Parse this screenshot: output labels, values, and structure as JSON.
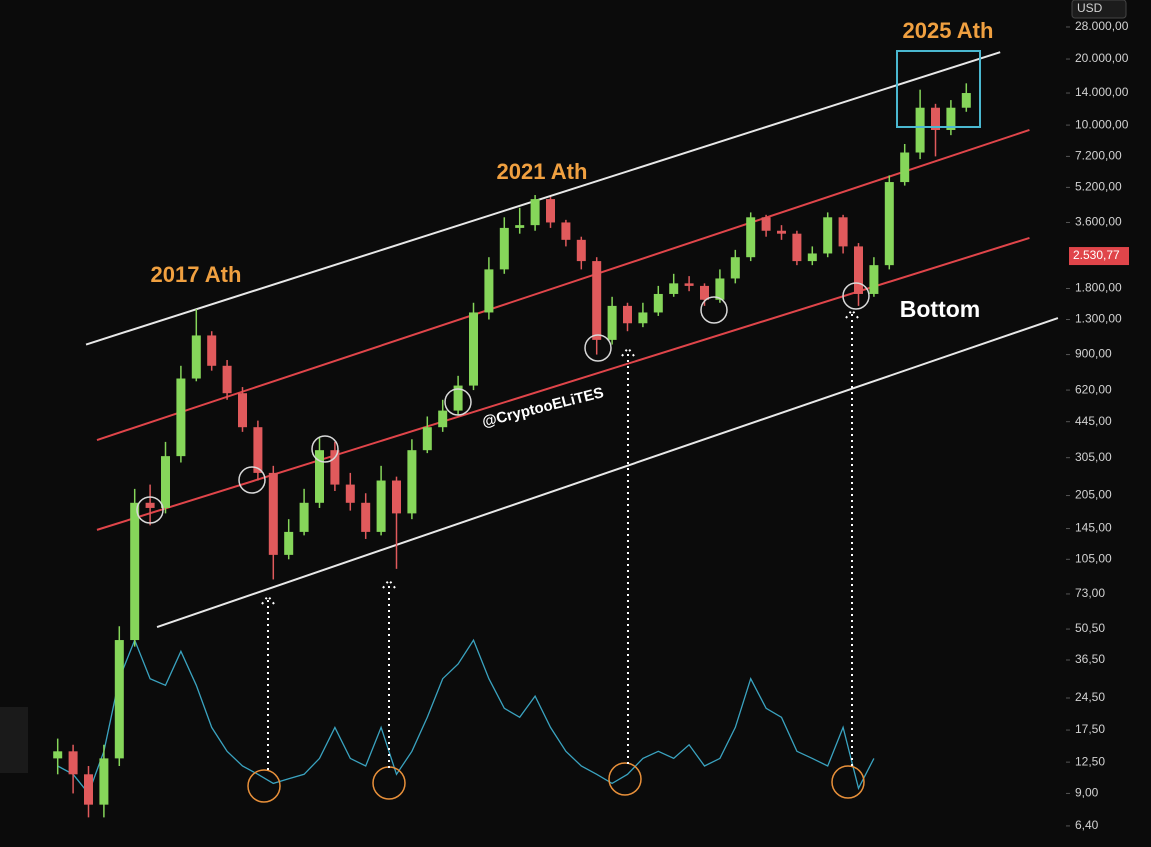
{
  "chart_data": {
    "type": "candlestick",
    "currency": "USD",
    "log_scale": true,
    "categories": [
      null,
      null,
      null,
      null,
      null,
      null,
      null,
      null,
      null,
      null,
      null,
      null,
      null,
      null,
      null,
      null,
      null,
      null,
      null,
      null,
      null,
      null,
      null,
      null,
      null,
      null,
      null,
      null,
      null,
      null,
      null,
      null,
      null,
      null,
      null,
      null,
      null,
      null,
      null,
      null,
      null,
      null,
      null,
      null,
      null,
      null,
      null,
      null,
      null,
      null,
      null,
      null,
      null,
      null,
      null,
      null,
      null,
      null,
      null,
      null
    ],
    "open": [
      13,
      14,
      11,
      8,
      13,
      45,
      190,
      180,
      310,
      700,
      1100,
      800,
      600,
      420,
      260,
      110,
      140,
      190,
      330,
      230,
      190,
      140,
      240,
      170,
      330,
      420,
      500,
      650,
      1400,
      2200,
      3400,
      3500,
      4600,
      3600,
      3000,
      2400,
      1050,
      1500,
      1250,
      1400,
      1700,
      1900,
      1850,
      1600,
      2000,
      2500,
      3800,
      3300,
      3200,
      2400,
      2600,
      3800,
      2800,
      1700,
      2300,
      5500,
      7500,
      12000,
      9500,
      12000
    ],
    "high": [
      16,
      15,
      12,
      15,
      52,
      220,
      230,
      360,
      800,
      1450,
      1150,
      850,
      640,
      450,
      280,
      160,
      220,
      380,
      360,
      260,
      210,
      280,
      250,
      370,
      470,
      560,
      720,
      1550,
      2500,
      3800,
      4200,
      4800,
      4700,
      3700,
      3100,
      2500,
      1650,
      1550,
      1550,
      1850,
      2100,
      2050,
      1900,
      2200,
      2700,
      4000,
      3900,
      3500,
      3300,
      2800,
      4000,
      3900,
      2900,
      2500,
      5900,
      8200,
      14500,
      12500,
      13000,
      15500
    ],
    "low": [
      11,
      9,
      7,
      7,
      12,
      42,
      150,
      170,
      290,
      680,
      760,
      560,
      400,
      240,
      85,
      105,
      135,
      180,
      215,
      175,
      130,
      135,
      95,
      160,
      320,
      400,
      480,
      620,
      1300,
      2100,
      3200,
      3300,
      3400,
      2800,
      2200,
      900,
      1000,
      1150,
      1200,
      1350,
      1650,
      1750,
      1500,
      1550,
      1900,
      2400,
      3100,
      3000,
      2300,
      2300,
      2500,
      2600,
      1500,
      1650,
      2200,
      5300,
      7000,
      7200,
      9000,
      11500
    ],
    "close": [
      14,
      11,
      8,
      13,
      45,
      190,
      180,
      310,
      700,
      1100,
      800,
      600,
      420,
      260,
      110,
      140,
      190,
      330,
      230,
      190,
      140,
      240,
      170,
      330,
      420,
      500,
      650,
      1400,
      2200,
      3400,
      3500,
      4600,
      3600,
      3000,
      2400,
      1050,
      1500,
      1250,
      1400,
      1700,
      1900,
      1850,
      1600,
      2000,
      2500,
      3800,
      3300,
      3200,
      2400,
      2600,
      3800,
      2800,
      1700,
      2300,
      5500,
      7500,
      12000,
      9500,
      12000,
      14000
    ],
    "up_color": "#86d65a",
    "down_color": "#e05a5c",
    "indicator": {
      "color": "#3aa3c0",
      "values": [
        12,
        11,
        9,
        14,
        30,
        45,
        30,
        28,
        40,
        28,
        18,
        14,
        12,
        11,
        10,
        10.5,
        11,
        13,
        18,
        13,
        12,
        18,
        11,
        14,
        20,
        30,
        35,
        45,
        30,
        22,
        20,
        25,
        18,
        14,
        12,
        11,
        10,
        11,
        13,
        14,
        13,
        15,
        12,
        13,
        18,
        30,
        22,
        20,
        14,
        13,
        12,
        18,
        9.5,
        13,
        null,
        null,
        null,
        null,
        null,
        null
      ]
    },
    "trendlines": [
      {
        "color": "#e8e8e8",
        "x": [
          1.84,
          61.2
        ],
        "values": [
          1000,
          21500
        ]
      },
      {
        "color": "#e0454a",
        "x": [
          2.55,
          63.1
        ],
        "values": [
          367,
          9500
        ]
      },
      {
        "color": "#e0454a",
        "x": [
          2.55,
          63.1
        ],
        "values": [
          143,
          3060
        ]
      },
      {
        "color": "#e8e8e8",
        "x": [
          6.45,
          64.95
        ],
        "values": [
          51.6,
          1320
        ]
      }
    ],
    "last_price": {
      "value": 2530.77,
      "label": "2.530,77",
      "color": "#e0454a"
    },
    "ylim": [
      5.13,
      37160
    ],
    "yticks": [
      {
        "value": 28000,
        "label": "28.000,00"
      },
      {
        "value": 20000,
        "label": "20.000,00"
      },
      {
        "value": 14000,
        "label": "14.000,00"
      },
      {
        "value": 10000,
        "label": "10.000,00"
      },
      {
        "value": 7200,
        "label": "7.200,00"
      },
      {
        "value": 5200,
        "label": "5.200,00"
      },
      {
        "value": 3600,
        "label": "3.600,00"
      },
      {
        "value": 1800,
        "label": "1.800,00"
      },
      {
        "value": 1300,
        "label": "1.300,00"
      },
      {
        "value": 900,
        "label": "900,00"
      },
      {
        "value": 620,
        "label": "620,00"
      },
      {
        "value": 445,
        "label": "445,00"
      },
      {
        "value": 305,
        "label": "305,00"
      },
      {
        "value": 205,
        "label": "205,00"
      },
      {
        "value": 145,
        "label": "145,00"
      },
      {
        "value": 105,
        "label": "105,00"
      },
      {
        "value": 73,
        "label": "73,00"
      },
      {
        "value": 50.5,
        "label": "50,50"
      },
      {
        "value": 36.5,
        "label": "36,50"
      },
      {
        "value": 24.5,
        "label": "24,50"
      },
      {
        "value": 17.5,
        "label": "17,50"
      },
      {
        "value": 12.5,
        "label": "12,50"
      },
      {
        "value": 9,
        "label": "9,00"
      },
      {
        "value": 6.4,
        "label": "6,40"
      }
    ],
    "annotations": [
      "2017 Ath",
      "2021 Ath",
      "2025 Ath",
      "Bottom"
    ],
    "watermark": "@CryptooELiTES"
  }
}
